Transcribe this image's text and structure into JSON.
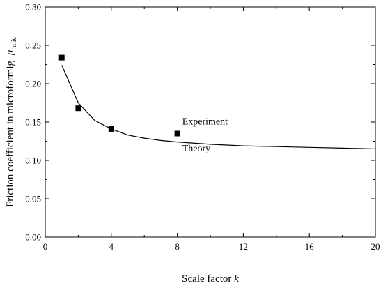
{
  "chart_data": {
    "type": "scatter",
    "xlabel": "Scale factor",
    "xlabel_var": "k",
    "ylabel": "Friction coefficient in microformig",
    "ylabel_var": "μ",
    "ylabel_sub": "mic",
    "xlim": [
      0,
      20
    ],
    "ylim": [
      0,
      0.3
    ],
    "xticks": [
      0,
      4,
      8,
      12,
      16,
      20
    ],
    "xtick_labels": [
      "0",
      "4",
      "8",
      "12",
      "16",
      "20"
    ],
    "yticks": [
      0,
      0.05,
      0.1,
      0.15,
      0.2,
      0.25,
      0.3
    ],
    "ytick_labels": [
      "0.00",
      "0.05",
      "0.10",
      "0.15",
      "0.20",
      "0.25",
      "0.30"
    ],
    "grid": false,
    "series": [
      {
        "name": "Experiment",
        "kind": "scatter",
        "marker": "square",
        "x": [
          1,
          2,
          4,
          8
        ],
        "y": [
          0.234,
          0.168,
          0.141,
          0.135
        ]
      },
      {
        "name": "Theory",
        "kind": "line",
        "x": [
          1,
          2,
          3,
          4,
          5,
          6,
          7,
          8,
          10,
          12,
          14,
          16,
          18,
          20
        ],
        "y": [
          0.224,
          0.175,
          0.152,
          0.141,
          0.133,
          0.129,
          0.126,
          0.124,
          0.121,
          0.119,
          0.118,
          0.117,
          0.116,
          0.115
        ]
      }
    ],
    "annotations": [
      {
        "text": "Experiment",
        "x": 8.3,
        "y": 0.147
      },
      {
        "text": "Theory",
        "x": 8.3,
        "y": 0.112
      }
    ]
  }
}
